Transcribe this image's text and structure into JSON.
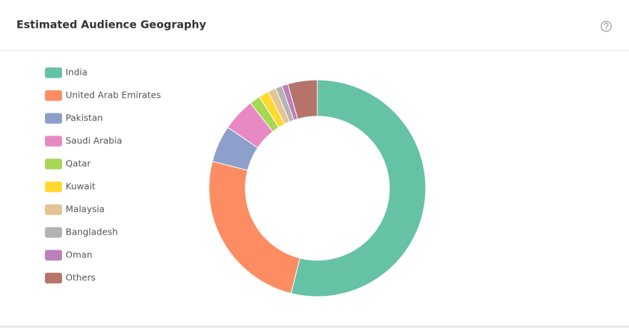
{
  "chart_data": {
    "type": "donut",
    "title": "Estimated Audience Geography",
    "categories": [
      "India",
      "United Arab Emirates",
      "Pakistan",
      "Saudi Arabia",
      "Qatar",
      "Kuwait",
      "Malaysia",
      "Bangladesh",
      "Oman",
      "Others"
    ],
    "values": [
      53.9,
      25.1,
      5.5,
      4.9,
      1.6,
      1.5,
      1.2,
      1.0,
      0.9,
      4.4
    ],
    "colors": [
      "#66c2a5",
      "#fc8d62",
      "#8da0cb",
      "#e78ac3",
      "#a6d854",
      "#ffd92f",
      "#e5c494",
      "#b3b3b3",
      "#bc80bd",
      "#b5736a"
    ],
    "legend": "left"
  }
}
